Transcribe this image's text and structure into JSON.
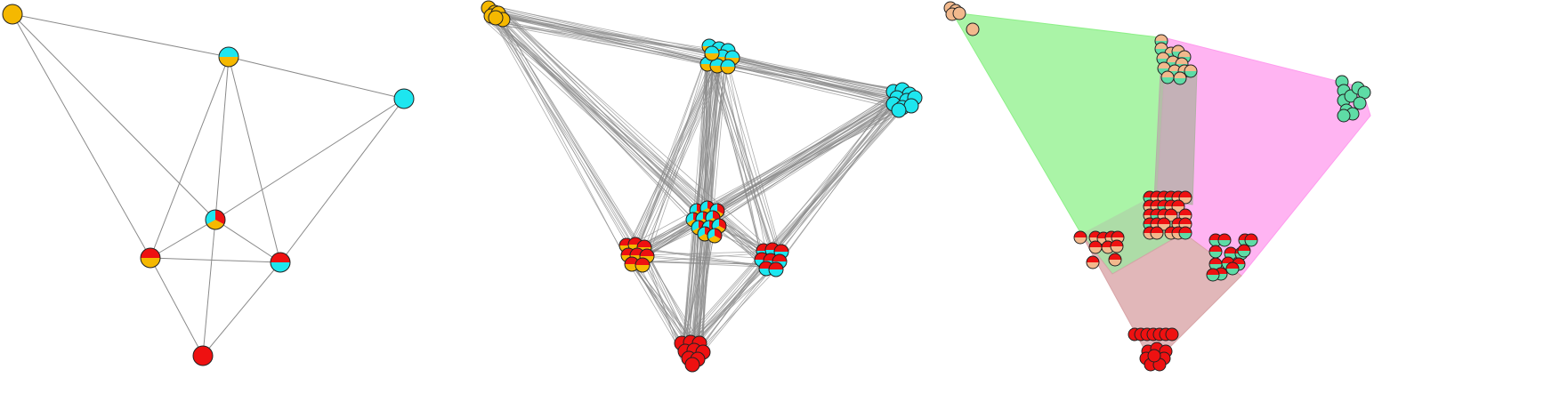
{
  "figure": {
    "panels": [
      {
        "id": "simple-graph",
        "description_key": "node-pie-graph"
      },
      {
        "id": "dense-graph",
        "description_key": "clustered-pie-graph"
      },
      {
        "id": "community-graph",
        "description_key": "convex-hull-communities"
      }
    ]
  },
  "colors": {
    "orange": "#F5B800",
    "cyan": "#1DE6EF",
    "red": "#EE1111",
    "edge": "#8a8a8a",
    "node_stroke": "#222222",
    "hull_green": "#8EF089",
    "hull_pink": "#FF9BEE",
    "hull_rose": "#D9A5A8",
    "hull_grey": "#B5B0A8",
    "peach": "#F2B98D",
    "mint": "#5EDCA6"
  }
}
